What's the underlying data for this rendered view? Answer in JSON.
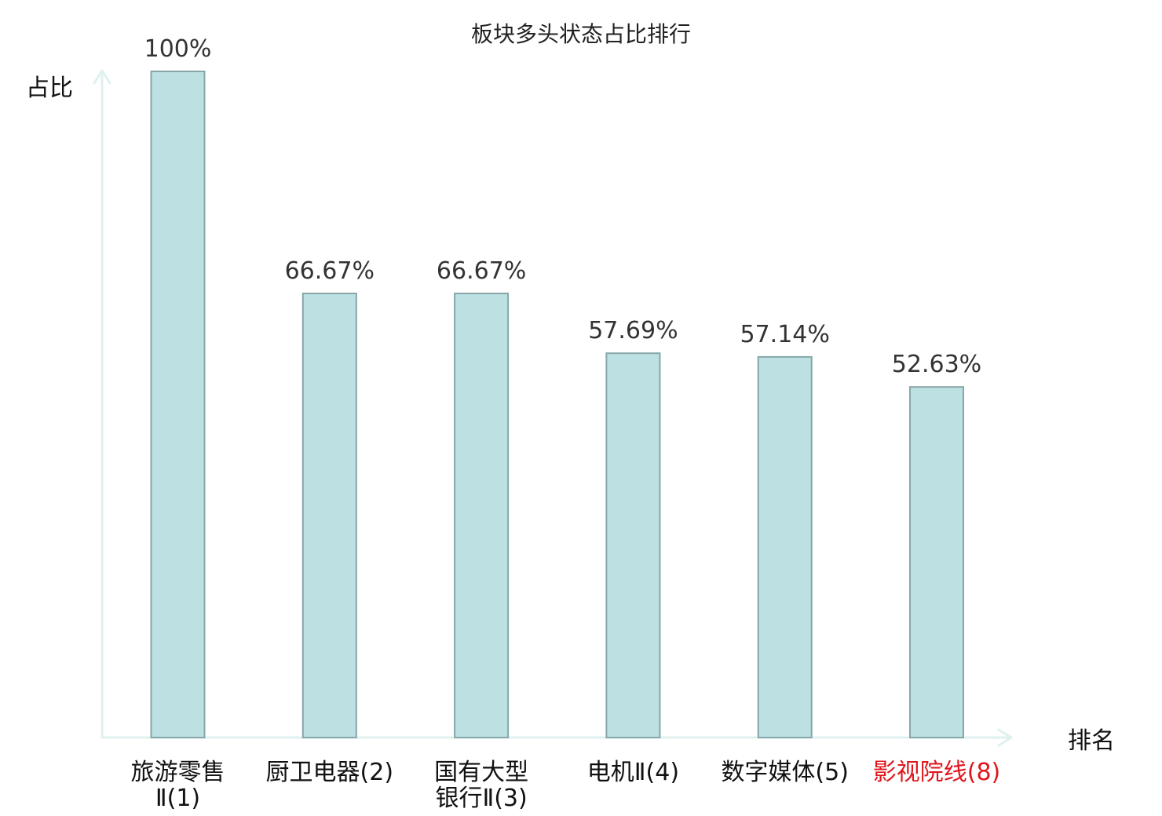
{
  "chart_data": {
    "type": "bar",
    "title": "板块多头状态占比排行",
    "ylabel": "占比",
    "xlabel": "排名",
    "ylim": [
      0,
      100
    ],
    "grid": false,
    "categories": [
      {
        "lines": [
          "旅游零售",
          "Ⅱ(1)"
        ],
        "highlight": false
      },
      {
        "lines": [
          "厨卫电器(2)"
        ],
        "highlight": false
      },
      {
        "lines": [
          "国有大型",
          "银行Ⅱ(3)"
        ],
        "highlight": false
      },
      {
        "lines": [
          "电机Ⅱ(4)"
        ],
        "highlight": false
      },
      {
        "lines": [
          "数字媒体(5)"
        ],
        "highlight": false
      },
      {
        "lines": [
          "影视院线(8)"
        ],
        "highlight": true
      }
    ],
    "values": [
      100,
      66.67,
      66.67,
      57.69,
      57.14,
      52.63
    ],
    "value_labels": [
      "100%",
      "66.67%",
      "66.67%",
      "57.69%",
      "57.14%",
      "52.63%"
    ],
    "colors": {
      "bar_fill": "#bde1e3",
      "bar_stroke": "#86a6a8",
      "axis": "#dff1ef",
      "category_text": "#111111",
      "highlight_text": "#e0161c"
    }
  }
}
